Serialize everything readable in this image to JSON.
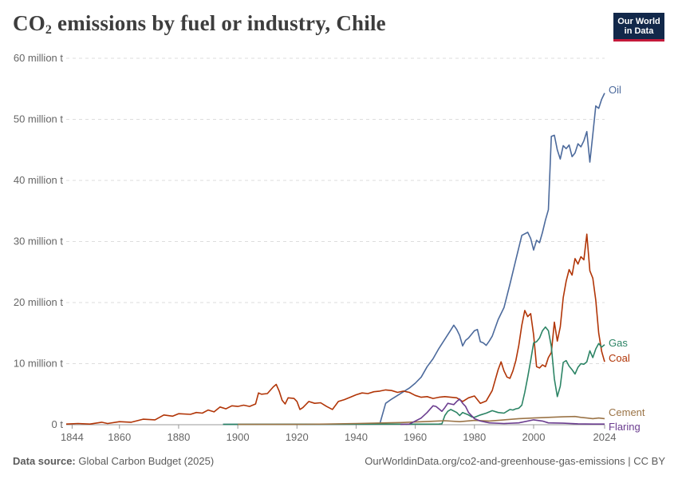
{
  "header": {
    "title_main": "CO",
    "title_sub": "2",
    "title_rest": " emissions by fuel or industry, Chile",
    "logo_line1": "Our World",
    "logo_line2": "in Data"
  },
  "footer": {
    "source_label": "Data source:",
    "source_value": " Global Carbon Budget (2025)",
    "url": "OurWorldinData.org/co2-and-greenhouse-gas-emissions | CC BY"
  },
  "chart_data": {
    "type": "line",
    "title": "CO₂ emissions by fuel or industry, Chile",
    "xlabel": "",
    "ylabel": "",
    "xlim": [
      1842,
      2024
    ],
    "ylim": [
      0,
      60
    ],
    "x_ticks": [
      "1844",
      "1860",
      "1880",
      "1900",
      "1920",
      "1940",
      "1960",
      "1980",
      "2000",
      "2024"
    ],
    "x_tick_values": [
      1844,
      1860,
      1880,
      1900,
      1920,
      1940,
      1960,
      1980,
      2000,
      2024
    ],
    "y_ticks": [
      "0 t",
      "10 million t",
      "20 million t",
      "30 million t",
      "40 million t",
      "50 million t",
      "60 million t"
    ],
    "y_tick_values": [
      0,
      10,
      20,
      30,
      40,
      50,
      60
    ],
    "series": [
      {
        "name": "Oil",
        "color": "#4c6a9c",
        "points": [
          [
            1895,
            0.05
          ],
          [
            1948,
            0.1
          ],
          [
            1950,
            3.5
          ],
          [
            1952,
            4.2
          ],
          [
            1954,
            4.8
          ],
          [
            1956,
            5.4
          ],
          [
            1958,
            6.0
          ],
          [
            1960,
            6.8
          ],
          [
            1962,
            7.8
          ],
          [
            1964,
            9.5
          ],
          [
            1966,
            10.8
          ],
          [
            1968,
            12.5
          ],
          [
            1970,
            14.0
          ],
          [
            1972,
            15.5
          ],
          [
            1973,
            16.3
          ],
          [
            1974,
            15.6
          ],
          [
            1975,
            14.6
          ],
          [
            1976,
            12.9
          ],
          [
            1977,
            13.8
          ],
          [
            1978,
            14.2
          ],
          [
            1980,
            15.4
          ],
          [
            1981,
            15.6
          ],
          [
            1982,
            13.6
          ],
          [
            1983,
            13.4
          ],
          [
            1984,
            13.0
          ],
          [
            1985,
            13.7
          ],
          [
            1986,
            14.5
          ],
          [
            1988,
            17.2
          ],
          [
            1990,
            19.2
          ],
          [
            1992,
            23.0
          ],
          [
            1994,
            27.0
          ],
          [
            1996,
            31.0
          ],
          [
            1998,
            31.5
          ],
          [
            1999,
            30.5
          ],
          [
            2000,
            28.6
          ],
          [
            2001,
            30.2
          ],
          [
            2002,
            29.8
          ],
          [
            2003,
            31.5
          ],
          [
            2004,
            33.5
          ],
          [
            2005,
            35.2
          ],
          [
            2006,
            47.2
          ],
          [
            2007,
            47.4
          ],
          [
            2008,
            45.0
          ],
          [
            2009,
            43.5
          ],
          [
            2010,
            45.7
          ],
          [
            2011,
            45.2
          ],
          [
            2012,
            45.8
          ],
          [
            2013,
            43.9
          ],
          [
            2014,
            44.5
          ],
          [
            2015,
            46.0
          ],
          [
            2016,
            45.5
          ],
          [
            2017,
            46.5
          ],
          [
            2018,
            48.0
          ],
          [
            2019,
            43.0
          ],
          [
            2020,
            47.5
          ],
          [
            2021,
            52.2
          ],
          [
            2022,
            51.8
          ],
          [
            2023,
            53.3
          ],
          [
            2024,
            54.3
          ]
        ]
      },
      {
        "name": "Coal",
        "color": "#b13507",
        "points": [
          [
            1842,
            0.1
          ],
          [
            1846,
            0.2
          ],
          [
            1850,
            0.1
          ],
          [
            1854,
            0.4
          ],
          [
            1856,
            0.2
          ],
          [
            1860,
            0.5
          ],
          [
            1864,
            0.4
          ],
          [
            1868,
            0.9
          ],
          [
            1872,
            0.8
          ],
          [
            1875,
            1.6
          ],
          [
            1878,
            1.4
          ],
          [
            1880,
            1.8
          ],
          [
            1884,
            1.7
          ],
          [
            1886,
            2.0
          ],
          [
            1888,
            1.9
          ],
          [
            1890,
            2.4
          ],
          [
            1892,
            2.1
          ],
          [
            1894,
            2.9
          ],
          [
            1896,
            2.6
          ],
          [
            1898,
            3.1
          ],
          [
            1900,
            3.0
          ],
          [
            1902,
            3.2
          ],
          [
            1904,
            3.0
          ],
          [
            1906,
            3.4
          ],
          [
            1907,
            5.2
          ],
          [
            1908,
            5.0
          ],
          [
            1910,
            5.1
          ],
          [
            1912,
            6.2
          ],
          [
            1913,
            6.6
          ],
          [
            1914,
            5.5
          ],
          [
            1915,
            4.0
          ],
          [
            1916,
            3.4
          ],
          [
            1917,
            4.4
          ],
          [
            1919,
            4.3
          ],
          [
            1920,
            3.8
          ],
          [
            1921,
            2.5
          ],
          [
            1922,
            2.8
          ],
          [
            1924,
            3.8
          ],
          [
            1926,
            3.5
          ],
          [
            1928,
            3.6
          ],
          [
            1930,
            3.0
          ],
          [
            1932,
            2.5
          ],
          [
            1934,
            3.8
          ],
          [
            1936,
            4.1
          ],
          [
            1938,
            4.5
          ],
          [
            1940,
            4.9
          ],
          [
            1942,
            5.2
          ],
          [
            1944,
            5.1
          ],
          [
            1946,
            5.4
          ],
          [
            1948,
            5.5
          ],
          [
            1950,
            5.7
          ],
          [
            1952,
            5.6
          ],
          [
            1954,
            5.3
          ],
          [
            1956,
            5.5
          ],
          [
            1958,
            5.3
          ],
          [
            1960,
            4.8
          ],
          [
            1962,
            4.5
          ],
          [
            1964,
            4.6
          ],
          [
            1966,
            4.3
          ],
          [
            1968,
            4.5
          ],
          [
            1970,
            4.6
          ],
          [
            1972,
            4.5
          ],
          [
            1974,
            4.4
          ],
          [
            1976,
            3.8
          ],
          [
            1978,
            4.4
          ],
          [
            1980,
            4.7
          ],
          [
            1982,
            3.5
          ],
          [
            1984,
            3.9
          ],
          [
            1986,
            5.6
          ],
          [
            1988,
            9.0
          ],
          [
            1989,
            10.3
          ],
          [
            1990,
            8.8
          ],
          [
            1991,
            7.8
          ],
          [
            1992,
            7.6
          ],
          [
            1993,
            8.8
          ],
          [
            1994,
            10.5
          ],
          [
            1995,
            13.0
          ],
          [
            1996,
            16.3
          ],
          [
            1997,
            18.7
          ],
          [
            1998,
            17.7
          ],
          [
            1999,
            18.2
          ],
          [
            2000,
            14.7
          ],
          [
            2001,
            9.5
          ],
          [
            2002,
            9.3
          ],
          [
            2003,
            9.8
          ],
          [
            2004,
            9.5
          ],
          [
            2005,
            11.0
          ],
          [
            2006,
            11.8
          ],
          [
            2007,
            16.8
          ],
          [
            2008,
            13.7
          ],
          [
            2009,
            16.0
          ],
          [
            2010,
            20.8
          ],
          [
            2011,
            23.5
          ],
          [
            2012,
            25.4
          ],
          [
            2013,
            24.5
          ],
          [
            2014,
            27.2
          ],
          [
            2015,
            26.3
          ],
          [
            2016,
            27.5
          ],
          [
            2017,
            27.0
          ],
          [
            2018,
            31.2
          ],
          [
            2019,
            25.2
          ],
          [
            2020,
            24.0
          ],
          [
            2021,
            20.4
          ],
          [
            2022,
            15.0
          ],
          [
            2023,
            12.0
          ],
          [
            2024,
            10.3
          ]
        ]
      },
      {
        "name": "Gas",
        "color": "#2c8465",
        "points": [
          [
            1895,
            0.05
          ],
          [
            1968,
            0.1
          ],
          [
            1969,
            0.15
          ],
          [
            1970,
            1.5
          ],
          [
            1971,
            2.2
          ],
          [
            1972,
            2.5
          ],
          [
            1974,
            2.0
          ],
          [
            1975,
            1.5
          ],
          [
            1976,
            2.0
          ],
          [
            1978,
            1.6
          ],
          [
            1979,
            1.3
          ],
          [
            1980,
            1.2
          ],
          [
            1982,
            1.6
          ],
          [
            1984,
            1.9
          ],
          [
            1986,
            2.3
          ],
          [
            1988,
            2.0
          ],
          [
            1990,
            1.9
          ],
          [
            1992,
            2.5
          ],
          [
            1993,
            2.4
          ],
          [
            1994,
            2.6
          ],
          [
            1995,
            2.7
          ],
          [
            1996,
            3.2
          ],
          [
            1997,
            5.3
          ],
          [
            1998,
            7.8
          ],
          [
            1999,
            10.5
          ],
          [
            2000,
            13.4
          ],
          [
            2001,
            13.6
          ],
          [
            2002,
            14.2
          ],
          [
            2003,
            15.4
          ],
          [
            2004,
            16.0
          ],
          [
            2005,
            15.4
          ],
          [
            2006,
            12.8
          ],
          [
            2007,
            7.5
          ],
          [
            2008,
            4.6
          ],
          [
            2009,
            6.3
          ],
          [
            2010,
            10.2
          ],
          [
            2011,
            10.5
          ],
          [
            2012,
            9.6
          ],
          [
            2013,
            9.0
          ],
          [
            2014,
            8.3
          ],
          [
            2015,
            9.4
          ],
          [
            2016,
            10.0
          ],
          [
            2017,
            9.9
          ],
          [
            2018,
            10.3
          ],
          [
            2019,
            12.1
          ],
          [
            2020,
            11.0
          ],
          [
            2021,
            12.4
          ],
          [
            2022,
            13.3
          ],
          [
            2023,
            12.7
          ],
          [
            2024,
            13.1
          ]
        ]
      },
      {
        "name": "Cement",
        "color": "#9b7447",
        "points": [
          [
            1900,
            0.05
          ],
          [
            1920,
            0.05
          ],
          [
            1930,
            0.1
          ],
          [
            1940,
            0.2
          ],
          [
            1950,
            0.3
          ],
          [
            1955,
            0.35
          ],
          [
            1960,
            0.45
          ],
          [
            1965,
            0.55
          ],
          [
            1970,
            0.65
          ],
          [
            1975,
            0.5
          ],
          [
            1980,
            0.7
          ],
          [
            1985,
            0.6
          ],
          [
            1990,
            0.8
          ],
          [
            1995,
            1.0
          ],
          [
            2000,
            1.1
          ],
          [
            2005,
            1.2
          ],
          [
            2010,
            1.3
          ],
          [
            2014,
            1.35
          ],
          [
            2016,
            1.2
          ],
          [
            2018,
            1.1
          ],
          [
            2020,
            1.0
          ],
          [
            2022,
            1.1
          ],
          [
            2024,
            1.0
          ]
        ]
      },
      {
        "name": "Flaring",
        "color": "#6b3d8f",
        "points": [
          [
            1955,
            0.05
          ],
          [
            1958,
            0.1
          ],
          [
            1960,
            0.6
          ],
          [
            1962,
            1.1
          ],
          [
            1964,
            2.0
          ],
          [
            1966,
            3.1
          ],
          [
            1967,
            3.0
          ],
          [
            1968,
            2.6
          ],
          [
            1969,
            2.2
          ],
          [
            1970,
            2.8
          ],
          [
            1971,
            3.5
          ],
          [
            1972,
            3.4
          ],
          [
            1973,
            3.3
          ],
          [
            1974,
            3.8
          ],
          [
            1975,
            4.2
          ],
          [
            1976,
            3.5
          ],
          [
            1977,
            3.0
          ],
          [
            1978,
            2.0
          ],
          [
            1980,
            1.0
          ],
          [
            1982,
            0.6
          ],
          [
            1985,
            0.3
          ],
          [
            1990,
            0.2
          ],
          [
            1995,
            0.3
          ],
          [
            2000,
            0.8
          ],
          [
            2003,
            0.6
          ],
          [
            2005,
            0.3
          ],
          [
            2010,
            0.25
          ],
          [
            2015,
            0.15
          ],
          [
            2020,
            0.1
          ],
          [
            2024,
            0.1
          ]
        ]
      }
    ]
  }
}
